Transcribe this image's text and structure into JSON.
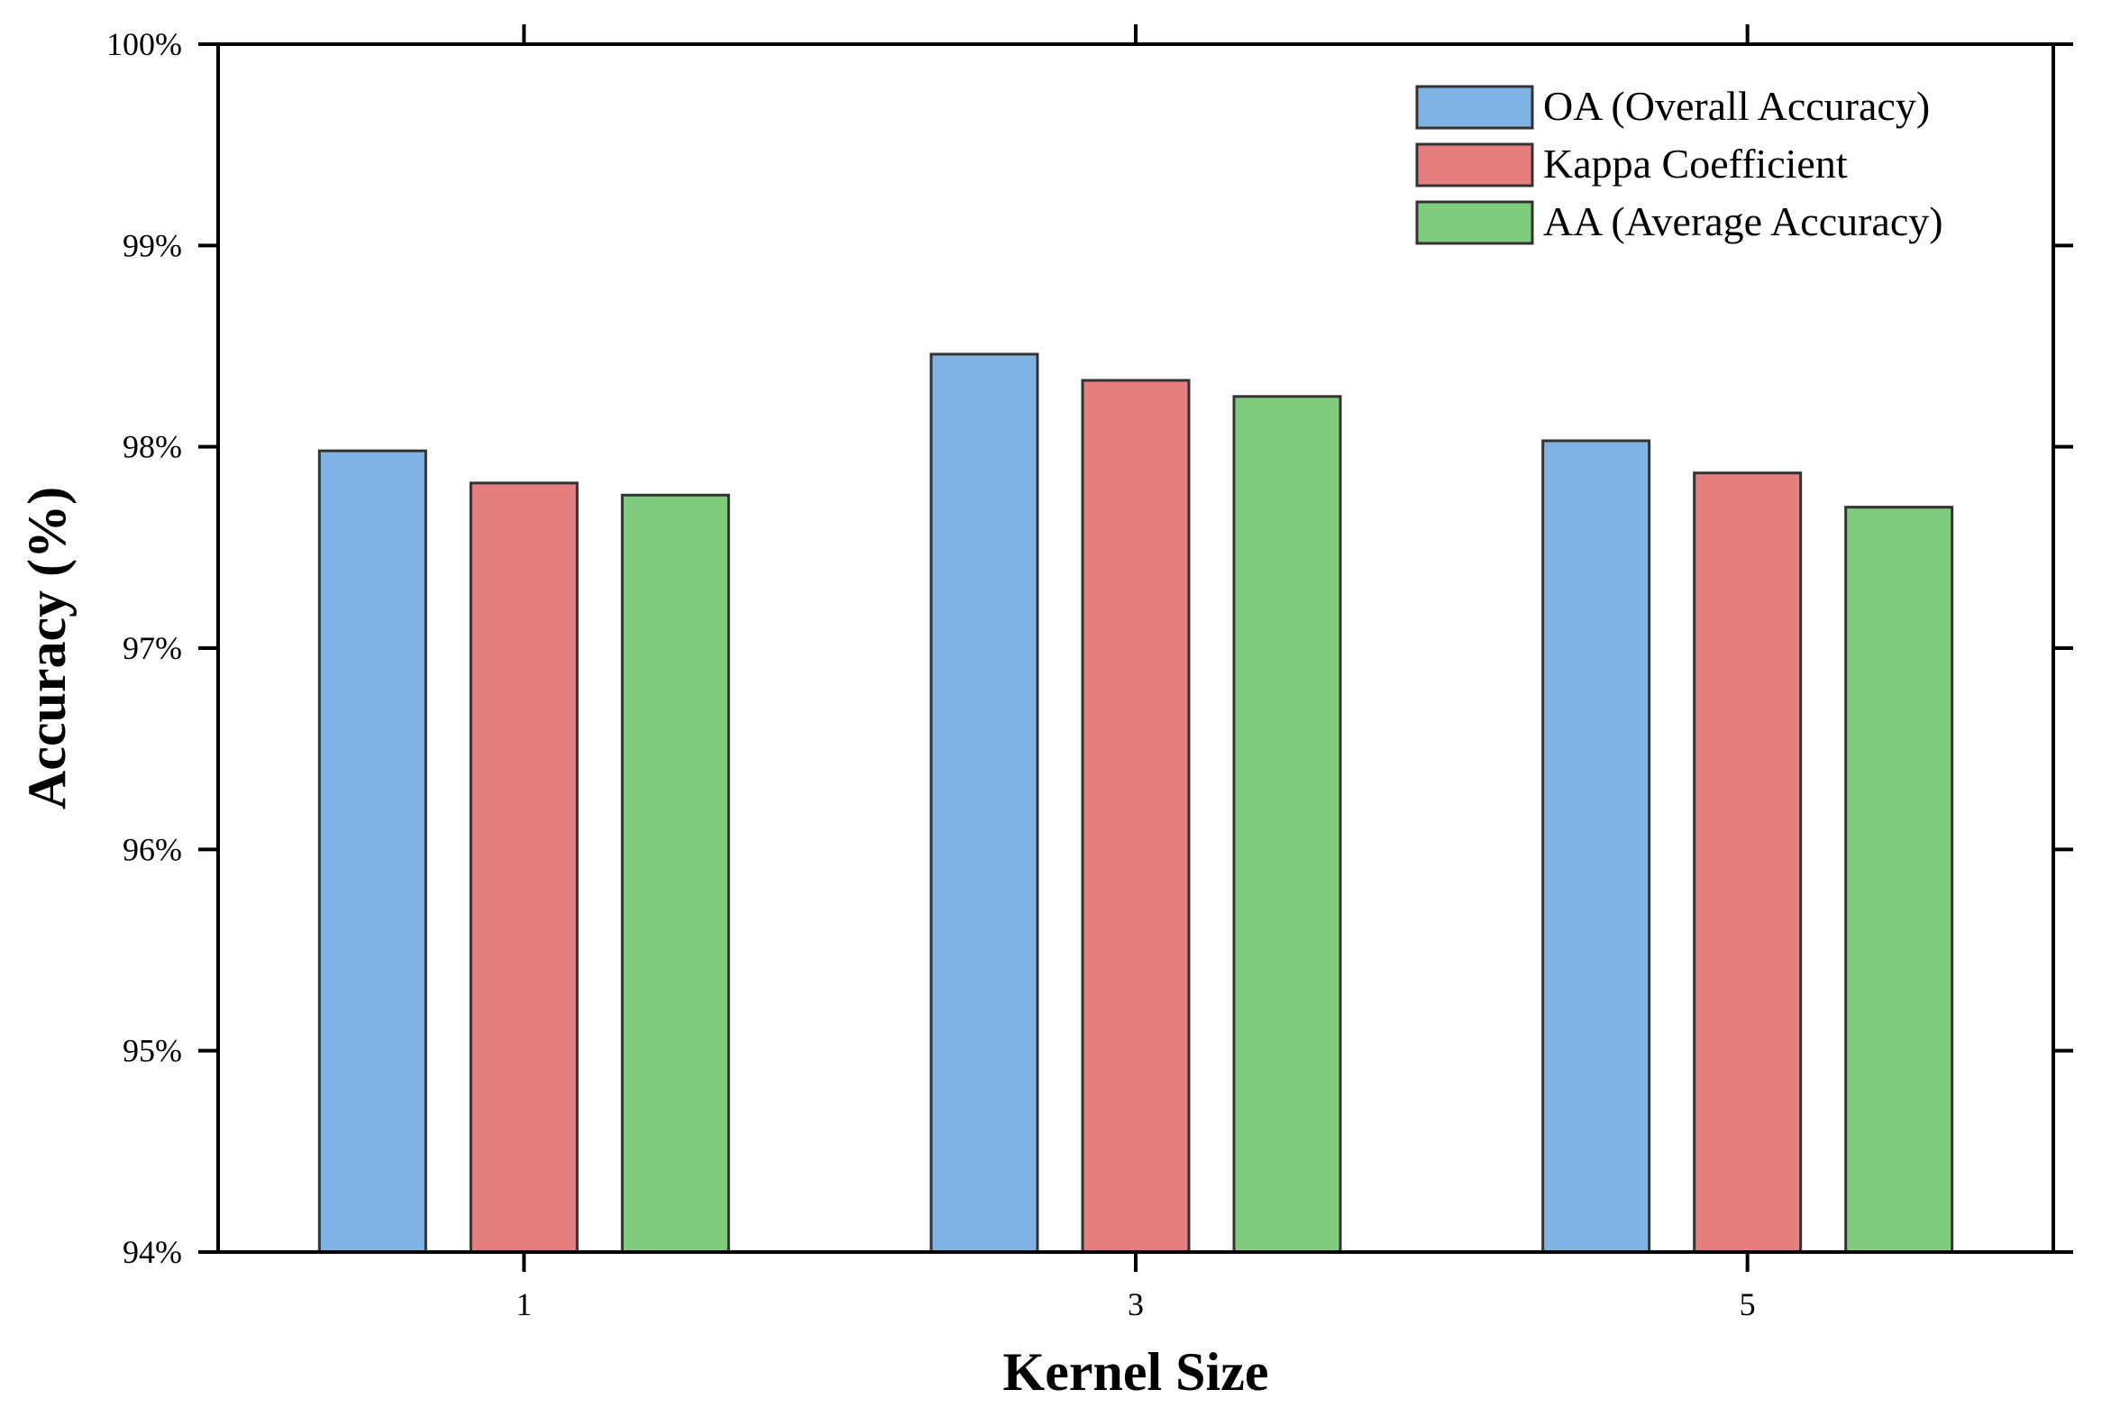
{
  "chart_data": {
    "type": "bar",
    "title": "",
    "xlabel": "Kernel Size",
    "ylabel": "Accuracy (%)",
    "categories": [
      "1",
      "3",
      "5"
    ],
    "ylim": [
      94,
      100
    ],
    "yticks": [
      94,
      95,
      96,
      97,
      98,
      99,
      100
    ],
    "ytick_labels": [
      "94%",
      "95%",
      "96%",
      "97%",
      "98%",
      "99%",
      "100%"
    ],
    "grid": false,
    "legend_position": "top-right",
    "series": [
      {
        "name": "OA (Overall Accuracy)",
        "color": "#80B2E4",
        "values": [
          97.98,
          98.46,
          98.03
        ]
      },
      {
        "name": "Kappa Coefficient",
        "color": "#E57F7F",
        "values": [
          97.82,
          98.33,
          97.87
        ]
      },
      {
        "name": "AA (Average Accuracy)",
        "color": "#80CC7E",
        "values": [
          97.76,
          98.25,
          97.7
        ]
      }
    ]
  }
}
